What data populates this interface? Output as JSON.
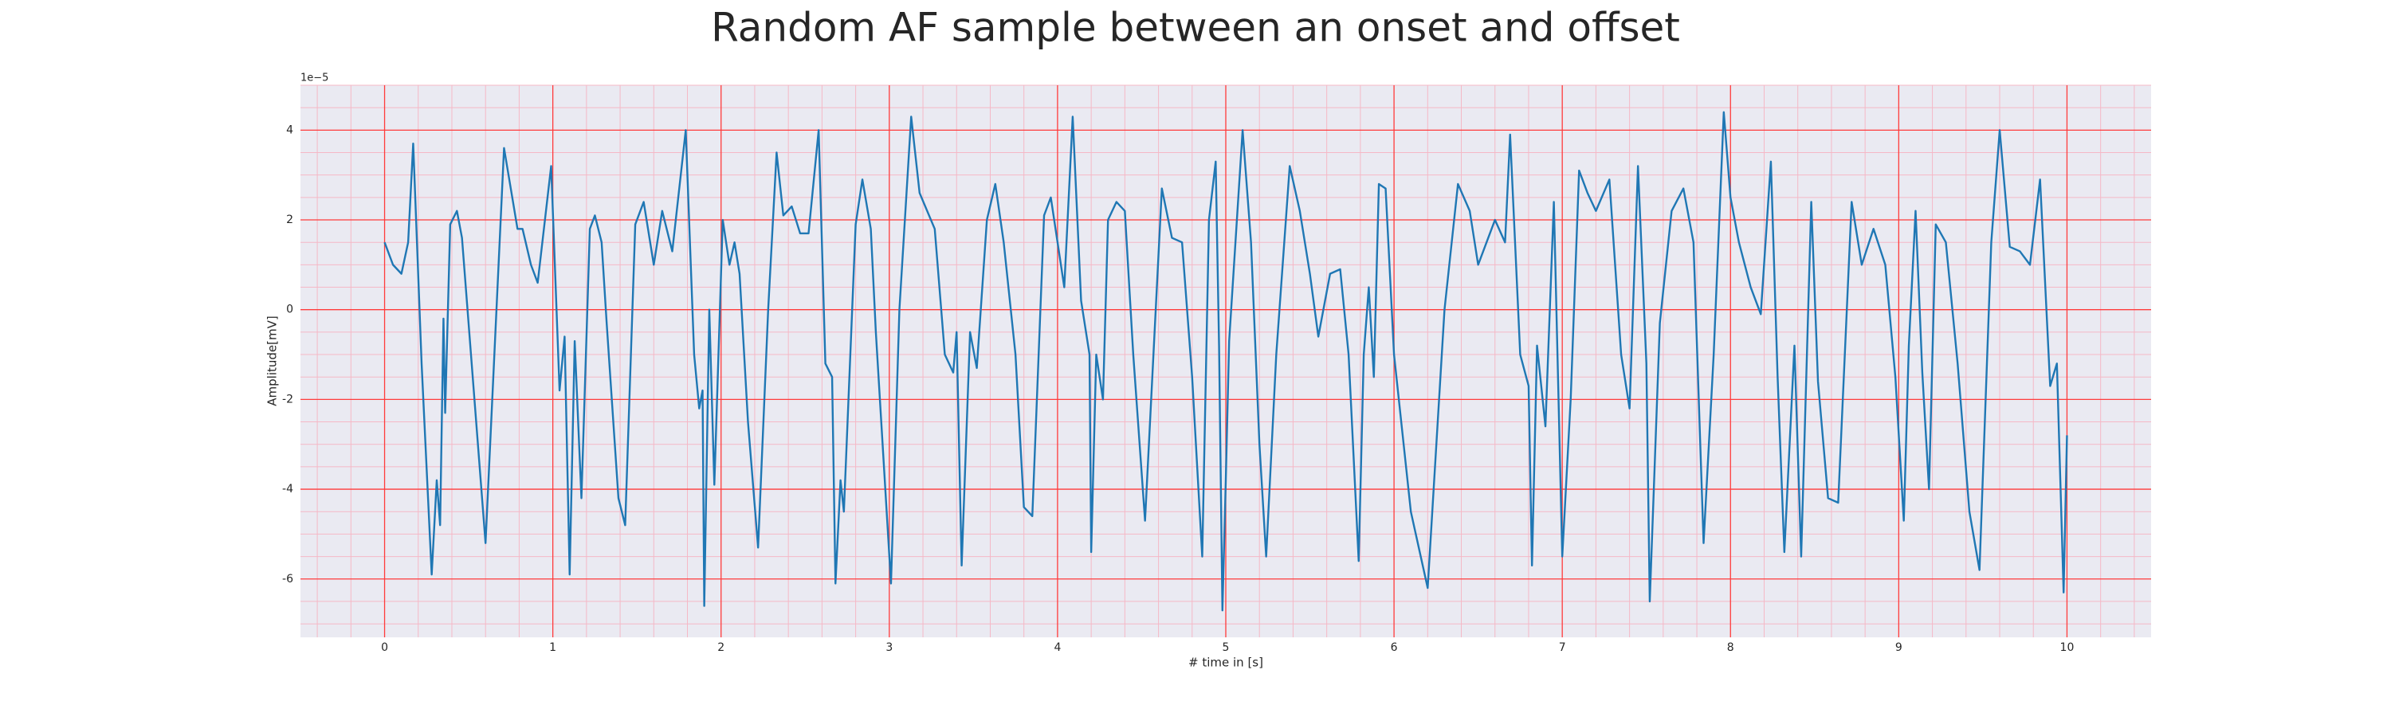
{
  "chart_data": {
    "type": "line",
    "title": "Random AF sample between an onset and offset",
    "xlabel": "# time in [s]",
    "ylabel": "Amplitude[mV]",
    "offset_text": "1e−5",
    "color": "#1f77b4",
    "background": "#eaeaf2",
    "grid": true,
    "grid_color": "#ff3b3b",
    "minor_grid_color": "#f5b8c6",
    "xlim": [
      -0.5,
      10.5
    ],
    "ylim": [
      -7.3,
      5
    ],
    "xticks": [
      0,
      1,
      2,
      3,
      4,
      5,
      6,
      7,
      8,
      9,
      10
    ],
    "yticks": [
      -6,
      -4,
      -2,
      0,
      2,
      4
    ],
    "xminorticks": [
      -0.4,
      -0.2,
      0.2,
      0.4,
      0.6,
      0.8,
      1.2,
      1.4,
      1.6,
      1.8,
      2.2,
      2.4,
      2.6,
      2.8,
      3.2,
      3.4,
      3.6,
      3.8,
      4.2,
      4.4,
      4.6,
      4.8,
      5.2,
      5.4,
      5.6,
      5.8,
      6.2,
      6.4,
      6.6,
      6.8,
      7.2,
      7.4,
      7.6,
      7.8,
      8.2,
      8.4,
      8.6,
      8.8,
      9.2,
      9.4,
      9.6,
      9.8,
      10.2,
      10.4
    ],
    "yminorticks": [
      -7,
      -6.5,
      -5.5,
      -5,
      -4.5,
      -3.5,
      -3,
      -2.5,
      -1.5,
      -1,
      -0.5,
      0.5,
      1,
      1.5,
      2.5,
      3,
      3.5,
      4.5,
      5
    ],
    "x": [
      0,
      0.05,
      0.1,
      0.14,
      0.17,
      0.22,
      0.28,
      0.31,
      0.33,
      0.35,
      0.36,
      0.39,
      0.43,
      0.46,
      0.6,
      0.71,
      0.79,
      0.82,
      0.87,
      0.91,
      0.99,
      1.04,
      1.07,
      1.1,
      1.13,
      1.17,
      1.22,
      1.25,
      1.29,
      1.32,
      1.39,
      1.43,
      1.49,
      1.54,
      1.6,
      1.65,
      1.71,
      1.79,
      1.84,
      1.87,
      1.89,
      1.9,
      1.93,
      1.96,
      2.01,
      2.05,
      2.08,
      2.11,
      2.16,
      2.22,
      2.28,
      2.33,
      2.37,
      2.42,
      2.47,
      2.52,
      2.58,
      2.62,
      2.66,
      2.68,
      2.71,
      2.73,
      2.8,
      2.84,
      2.89,
      2.92,
      3.01,
      3.06,
      3.13,
      3.18,
      3.27,
      3.33,
      3.38,
      3.4,
      3.43,
      3.48,
      3.52,
      3.58,
      3.63,
      3.68,
      3.75,
      3.8,
      3.85,
      3.92,
      3.96,
      4.0,
      4.04,
      4.09,
      4.14,
      4.19,
      4.2,
      4.23,
      4.27,
      4.3,
      4.35,
      4.4,
      4.45,
      4.52,
      4.57,
      4.62,
      4.68,
      4.74,
      4.8,
      4.86,
      4.9,
      4.94,
      4.96,
      4.98,
      5.0,
      5.02,
      5.1,
      5.15,
      5.2,
      5.24,
      5.3,
      5.38,
      5.44,
      5.5,
      5.55,
      5.62,
      5.68,
      5.73,
      5.79,
      5.82,
      5.85,
      5.88,
      5.91,
      5.95,
      6.0,
      6.1,
      6.2,
      6.3,
      6.38,
      6.45,
      6.5,
      6.55,
      6.6,
      6.66,
      6.69,
      6.75,
      6.8,
      6.82,
      6.85,
      6.9,
      6.95,
      7.0,
      7.05,
      7.1,
      7.15,
      7.2,
      7.28,
      7.35,
      7.4,
      7.45,
      7.5,
      7.52,
      7.58,
      7.65,
      7.72,
      7.78,
      7.84,
      7.9,
      7.96,
      8.0,
      8.05,
      8.12,
      8.18,
      8.24,
      8.28,
      8.32,
      8.38,
      8.42,
      8.48,
      8.52,
      8.58,
      8.64,
      8.72,
      8.78,
      8.85,
      8.92,
      8.98,
      9.03,
      9.06,
      9.1,
      9.14,
      9.18,
      9.22,
      9.28,
      9.35,
      9.42,
      9.48,
      9.55,
      9.6,
      9.66,
      9.72,
      9.78,
      9.84,
      9.9,
      9.94,
      9.98,
      10.0
    ],
    "values": [
      1.5,
      1.0,
      0.8,
      1.5,
      3.7,
      -1.2,
      -5.9,
      -3.8,
      -4.8,
      -0.2,
      -2.3,
      1.9,
      2.2,
      1.6,
      -5.2,
      3.6,
      1.8,
      1.8,
      1.0,
      0.6,
      3.2,
      -1.8,
      -0.6,
      -5.9,
      -0.7,
      -4.2,
      1.8,
      2.1,
      1.5,
      -0.3,
      -4.2,
      -4.8,
      1.9,
      2.4,
      1.0,
      2.2,
      1.3,
      4.0,
      -1.0,
      -2.2,
      -1.8,
      -6.6,
      0.0,
      -3.9,
      2.0,
      1.0,
      1.5,
      0.8,
      -2.5,
      -5.3,
      0.0,
      3.5,
      2.1,
      2.3,
      1.7,
      1.7,
      4.0,
      -1.2,
      -1.5,
      -6.1,
      -3.8,
      -4.5,
      1.9,
      2.9,
      1.8,
      -0.5,
      -6.1,
      0.0,
      4.3,
      2.6,
      1.8,
      -1.0,
      -1.4,
      -0.5,
      -5.7,
      -0.5,
      -1.3,
      2.0,
      2.8,
      1.5,
      -1.0,
      -4.4,
      -4.6,
      2.1,
      2.5,
      1.5,
      0.5,
      4.3,
      0.2,
      -1.0,
      -5.4,
      -1.0,
      -2.0,
      2.0,
      2.4,
      2.2,
      -1.0,
      -4.7,
      -1.0,
      2.7,
      1.6,
      1.5,
      -1.5,
      -5.5,
      2.0,
      3.3,
      -0.8,
      -6.7,
      -3.8,
      -0.7,
      4.0,
      1.5,
      -3.0,
      -5.5,
      -1.0,
      3.2,
      2.2,
      0.8,
      -0.6,
      0.8,
      0.9,
      -1.0,
      -5.6,
      -1.0,
      0.5,
      -1.5,
      2.8,
      2.7,
      -1.0,
      -4.5,
      -6.2,
      0.0,
      2.8,
      2.2,
      1.0,
      1.5,
      2.0,
      1.5,
      3.9,
      -1.0,
      -1.7,
      -5.7,
      -0.8,
      -2.6,
      2.4,
      -5.5,
      -2.0,
      3.1,
      2.6,
      2.2,
      2.9,
      -1.0,
      -2.2,
      3.2,
      -1.2,
      -6.5,
      -0.3,
      2.2,
      2.7,
      1.5,
      -5.2,
      -1.0,
      4.4,
      2.5,
      1.5,
      0.5,
      -0.1,
      3.3,
      -1.5,
      -5.4,
      -0.8,
      -5.5,
      2.4,
      -1.6,
      -4.2,
      -4.3,
      2.4,
      1.0,
      1.8,
      1.0,
      -1.5,
      -4.7,
      -0.8,
      2.2,
      -1.4,
      -4.0,
      1.9,
      1.5,
      -1.2,
      -4.5,
      -5.8,
      1.5,
      4.0,
      1.4,
      1.3,
      1.0,
      2.9,
      -1.7,
      -1.2,
      -6.3,
      -2.8
    ]
  }
}
